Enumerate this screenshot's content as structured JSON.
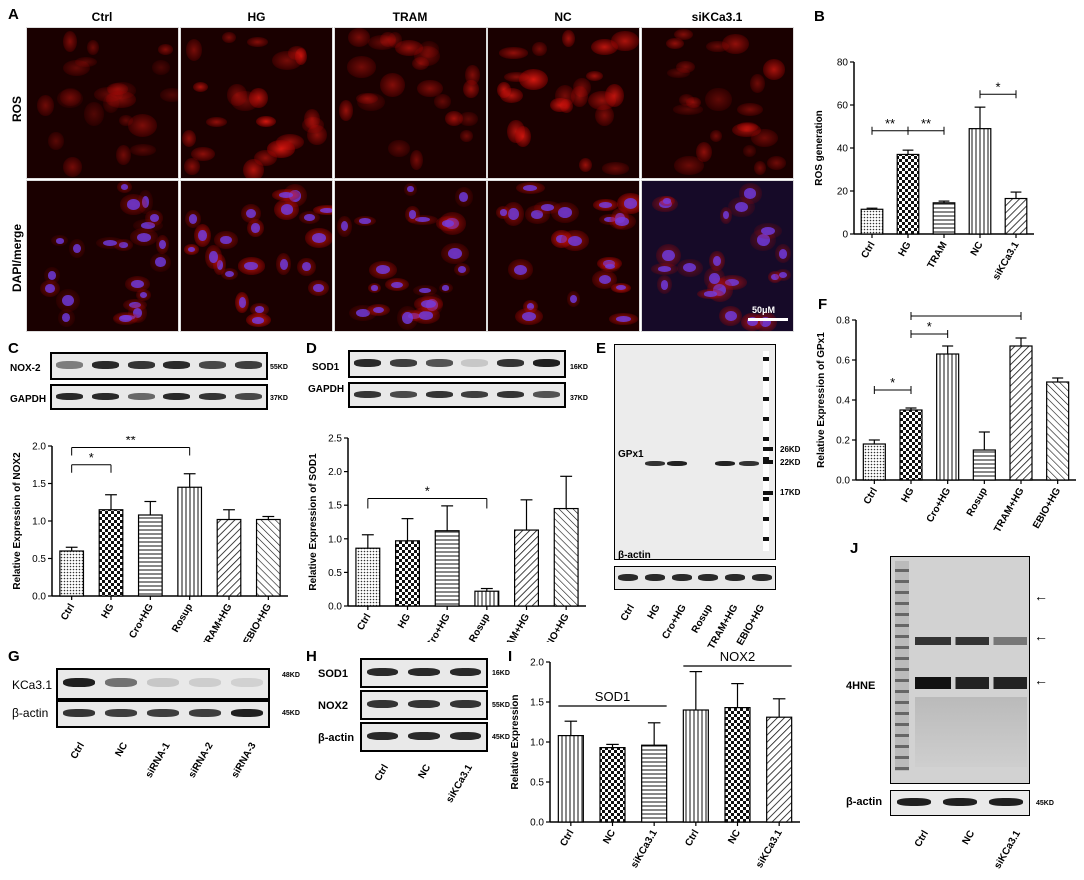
{
  "panelA": {
    "label": "A",
    "columns": [
      "Ctrl",
      "HG",
      "TRAM",
      "NC",
      "siKCa3.1"
    ],
    "rows": [
      "ROS",
      "DAPI/merge"
    ],
    "scalebar": "50μM"
  },
  "panelB": {
    "label": "B"
  },
  "panelC": {
    "label": "C",
    "blots": [
      "NOX-2",
      "GAPDH"
    ],
    "kd": [
      "55KD",
      "37KD"
    ]
  },
  "panelD": {
    "label": "D",
    "blots": [
      "SOD1",
      "GAPDH"
    ],
    "kd": [
      "16KD",
      "37KD"
    ]
  },
  "panelE": {
    "label": "E",
    "protein": "GPx1",
    "markers": [
      "26KD",
      "22KD",
      "17KD"
    ],
    "loading": "β-actin",
    "lanes": [
      "Ctrl",
      "HG",
      "Cro+HG",
      "Rosup",
      "TRAM+HG",
      "EBIO+HG"
    ]
  },
  "panelF": {
    "label": "F"
  },
  "panelG": {
    "label": "G",
    "blots": [
      "KCa3.1",
      "β-actin"
    ],
    "kd": [
      "48KD",
      "45KD"
    ],
    "lanes": [
      "Ctrl",
      "NC",
      "siRNA-1",
      "siRNA-2",
      "siRNA-3"
    ]
  },
  "panelH": {
    "label": "H",
    "blots": [
      "SOD1",
      "NOX2",
      "β-actin"
    ],
    "kd": [
      "16KD",
      "55KD",
      "45KD"
    ],
    "lanes": [
      "Ctrl",
      "NC",
      "siKCa3.1"
    ]
  },
  "panelI": {
    "label": "I"
  },
  "panelJ": {
    "label": "J",
    "protein": "4HNE",
    "loading": "β-actin",
    "kd": "45KD",
    "lanes": [
      "Ctrl",
      "NC",
      "siKCa3.1"
    ]
  },
  "chart_data": [
    {
      "id": "B",
      "type": "bar",
      "categories": [
        "Ctrl",
        "HG",
        "TRAM",
        "NC",
        "siKCa3.1"
      ],
      "values": [
        11.5,
        37,
        14.5,
        49,
        16.5
      ],
      "errors": [
        0.5,
        2,
        0.8,
        10,
        3
      ],
      "title": "",
      "xlabel": "",
      "ylabel": "ROS generation",
      "ylim": [
        0,
        80
      ],
      "yticks": [
        0,
        20,
        40,
        60,
        80
      ],
      "annotations": [
        "**",
        "**",
        "*"
      ]
    },
    {
      "id": "C",
      "type": "bar",
      "categories": [
        "Ctrl",
        "HG",
        "Cro+HG",
        "Rosup",
        "TRAM+HG",
        "EBIO+HG"
      ],
      "values": [
        0.6,
        1.15,
        1.08,
        1.45,
        1.02,
        1.02
      ],
      "errors": [
        0.05,
        0.2,
        0.18,
        0.18,
        0.13,
        0.04
      ],
      "title": "",
      "xlabel": "",
      "ylabel": "Relative Expression of NOX2",
      "ylim": [
        0,
        2.0
      ],
      "yticks": [
        0.0,
        0.5,
        1.0,
        1.5,
        2.0
      ],
      "annotations": [
        "*",
        "**"
      ]
    },
    {
      "id": "D",
      "type": "bar",
      "categories": [
        "Ctrl",
        "HG",
        "Cro+HG",
        "Rosup",
        "TRAM+HG",
        "EBIO+HG"
      ],
      "values": [
        0.86,
        0.97,
        1.12,
        0.22,
        1.13,
        1.45
      ],
      "errors": [
        0.2,
        0.33,
        0.37,
        0.04,
        0.45,
        0.48
      ],
      "title": "",
      "xlabel": "",
      "ylabel": "Relative Expression of SOD1",
      "ylim": [
        0,
        2.5
      ],
      "yticks": [
        0.0,
        0.5,
        1.0,
        1.5,
        2.0,
        2.5
      ],
      "annotations": [
        "*"
      ]
    },
    {
      "id": "F",
      "type": "bar",
      "categories": [
        "Ctrl",
        "HG",
        "Cro+HG",
        "Rosup",
        "TRAM+HG",
        "EBIO+HG"
      ],
      "values": [
        0.18,
        0.35,
        0.63,
        0.15,
        0.67,
        0.49
      ],
      "errors": [
        0.02,
        0.01,
        0.04,
        0.09,
        0.04,
        0.02
      ],
      "title": "",
      "xlabel": "",
      "ylabel": "Relative Expression of GPx1",
      "ylim": [
        0,
        0.8
      ],
      "yticks": [
        0.0,
        0.2,
        0.4,
        0.6,
        0.8
      ],
      "annotations": [
        "*",
        "*",
        "*"
      ]
    },
    {
      "id": "I",
      "type": "bar",
      "categories": [
        "Ctrl",
        "NC",
        "siKCa3.1",
        "Ctrl",
        "NC",
        "siKCa3.1"
      ],
      "values": [
        1.08,
        0.93,
        0.96,
        1.4,
        1.43,
        1.31
      ],
      "errors": [
        0.18,
        0.04,
        0.28,
        0.48,
        0.3,
        0.23
      ],
      "title": "",
      "xlabel": "",
      "ylabel": "Relative Expression",
      "ylim": [
        0,
        2.0
      ],
      "yticks": [
        0.0,
        0.5,
        1.0,
        1.5,
        2.0
      ],
      "groups": [
        "SOD1",
        "NOX2"
      ]
    }
  ]
}
